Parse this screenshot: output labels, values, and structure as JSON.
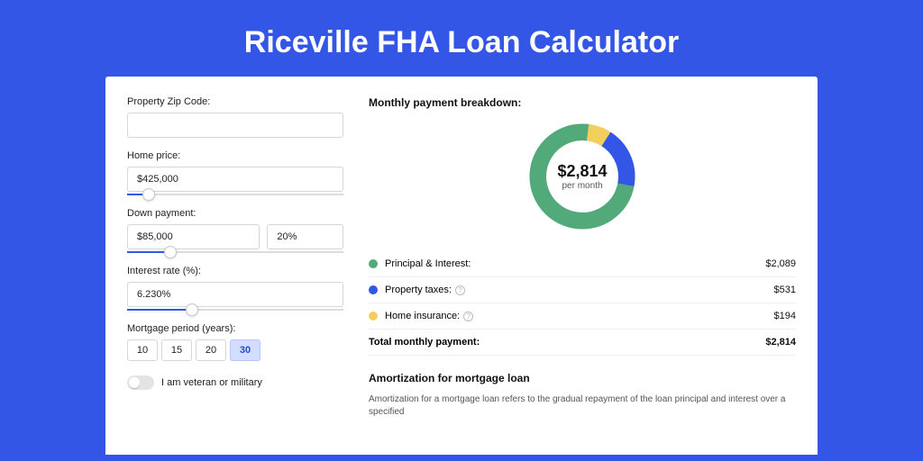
{
  "page": {
    "title": "Riceville FHA Loan Calculator",
    "background": "#3356e6"
  },
  "form": {
    "zip": {
      "label": "Property Zip Code:",
      "value": ""
    },
    "home_price": {
      "label": "Home price:",
      "value": "$425,000",
      "slider_pct": 10
    },
    "down_payment": {
      "label": "Down payment:",
      "amount": "$85,000",
      "percent": "20%",
      "slider_pct": 20
    },
    "interest": {
      "label": "Interest rate (%):",
      "value": "6.230%",
      "slider_pct": 30
    },
    "period": {
      "label": "Mortgage period (years):",
      "options": [
        "10",
        "15",
        "20",
        "30"
      ],
      "active_index": 3
    },
    "veteran": {
      "label": "I am veteran or military",
      "checked": false
    }
  },
  "breakdown": {
    "title": "Monthly payment breakdown:",
    "donut": {
      "amount": "$2,814",
      "sub": "per month",
      "segments": [
        {
          "label": "Principal & Interest:",
          "value": "$2,089",
          "color": "#52a97a",
          "pct": 74,
          "has_info": false
        },
        {
          "label": "Property taxes:",
          "value": "$531",
          "color": "#3356e6",
          "pct": 19,
          "has_info": true
        },
        {
          "label": "Home insurance:",
          "value": "$194",
          "color": "#f2cf5a",
          "pct": 7,
          "has_info": true
        }
      ],
      "ring_width": 18
    },
    "total": {
      "label": "Total monthly payment:",
      "value": "$2,814"
    }
  },
  "amortization": {
    "title": "Amortization for mortgage loan",
    "text": "Amortization for a mortgage loan refers to the gradual repayment of the loan principal and interest over a specified"
  }
}
